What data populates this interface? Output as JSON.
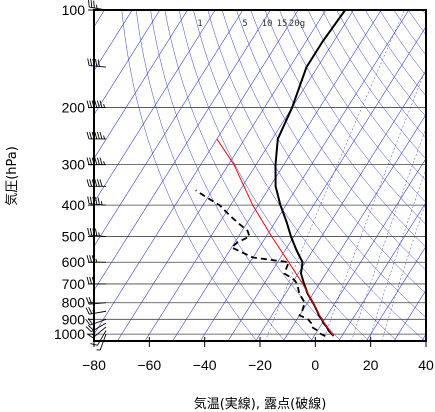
{
  "chart_data": {
    "type": "skew-t",
    "xlabel": "気温(実線), 露点(破線)",
    "ylabel": "気圧(hPa)",
    "x_ticks": [
      -80,
      -60,
      -40,
      -20,
      0,
      20,
      40
    ],
    "y_ticks": [
      100,
      200,
      300,
      400,
      500,
      600,
      700,
      800,
      900,
      1000
    ],
    "xlim": [
      -80,
      40
    ],
    "ylim": [
      1050,
      100
    ],
    "y_scale": "log",
    "grid": true,
    "mixing_ratio_labels": [
      "1",
      "5",
      "10",
      "15",
      "20g"
    ],
    "colors": {
      "temperature": "#000000",
      "dewpoint": "#000000",
      "parcel": "#ff0000",
      "guide_lines": "#3344cc",
      "wind_barbs": "#000000"
    },
    "series": [
      {
        "kind": "temperature",
        "line_style": "solid",
        "points": [
          {
            "p": 1013,
            "t": 7
          },
          {
            "p": 1000,
            "t": 6
          },
          {
            "p": 975,
            "t": 4
          },
          {
            "p": 950,
            "t": 2.5
          },
          {
            "p": 925,
            "t": 0.5
          },
          {
            "p": 900,
            "t": -1
          },
          {
            "p": 875,
            "t": -3
          },
          {
            "p": 850,
            "t": -4.5
          },
          {
            "p": 800,
            "t": -8
          },
          {
            "p": 750,
            "t": -12
          },
          {
            "p": 700,
            "t": -15.5
          },
          {
            "p": 650,
            "t": -19
          },
          {
            "p": 600,
            "t": -21
          },
          {
            "p": 550,
            "t": -26
          },
          {
            "p": 500,
            "t": -31
          },
          {
            "p": 450,
            "t": -36
          },
          {
            "p": 400,
            "t": -42
          },
          {
            "p": 350,
            "t": -48
          },
          {
            "p": 300,
            "t": -53
          },
          {
            "p": 250,
            "t": -58
          },
          {
            "p": 200,
            "t": -60
          },
          {
            "p": 150,
            "t": -64
          },
          {
            "p": 125,
            "t": -64
          },
          {
            "p": 100,
            "t": -63
          }
        ]
      },
      {
        "kind": "dewpoint",
        "line_style": "dashed",
        "points": [
          {
            "p": 1013,
            "t": 4
          },
          {
            "p": 1000,
            "t": 2
          },
          {
            "p": 975,
            "t": 0
          },
          {
            "p": 950,
            "t": -3
          },
          {
            "p": 925,
            "t": -4
          },
          {
            "p": 900,
            "t": -6
          },
          {
            "p": 875,
            "t": -10
          },
          {
            "p": 850,
            "t": -10
          },
          {
            "p": 800,
            "t": -11
          },
          {
            "p": 750,
            "t": -15
          },
          {
            "p": 700,
            "t": -18
          },
          {
            "p": 680,
            "t": -20
          },
          {
            "p": 650,
            "t": -25
          },
          {
            "p": 600,
            "t": -26
          },
          {
            "p": 580,
            "t": -40
          },
          {
            "p": 560,
            "t": -45
          },
          {
            "p": 540,
            "t": -50
          },
          {
            "p": 520,
            "t": -49
          },
          {
            "p": 500,
            "t": -46
          },
          {
            "p": 480,
            "t": -48
          },
          {
            "p": 460,
            "t": -52
          },
          {
            "p": 440,
            "t": -56
          },
          {
            "p": 420,
            "t": -60
          },
          {
            "p": 400,
            "t": -64
          },
          {
            "p": 380,
            "t": -70
          },
          {
            "p": 360,
            "t": -76
          }
        ]
      },
      {
        "kind": "parcel",
        "line_style": "solid",
        "points": [
          {
            "p": 1013,
            "t": 7
          },
          {
            "p": 900,
            "t": -1
          },
          {
            "p": 800,
            "t": -8
          },
          {
            "p": 700,
            "t": -16
          },
          {
            "p": 600,
            "t": -26
          },
          {
            "p": 500,
            "t": -38
          },
          {
            "p": 400,
            "t": -52
          },
          {
            "p": 300,
            "t": -68
          },
          {
            "p": 250,
            "t": -80
          }
        ]
      }
    ],
    "winds": [
      {
        "p": 1000,
        "speed_kt": 5,
        "dir_deg": 200
      },
      {
        "p": 975,
        "speed_kt": 10,
        "dir_deg": 210
      },
      {
        "p": 950,
        "speed_kt": 15,
        "dir_deg": 230
      },
      {
        "p": 925,
        "speed_kt": 20,
        "dir_deg": 240
      },
      {
        "p": 900,
        "speed_kt": 20,
        "dir_deg": 250
      },
      {
        "p": 850,
        "speed_kt": 25,
        "dir_deg": 260
      },
      {
        "p": 800,
        "speed_kt": 25,
        "dir_deg": 265
      },
      {
        "p": 700,
        "speed_kt": 30,
        "dir_deg": 270
      },
      {
        "p": 600,
        "speed_kt": 35,
        "dir_deg": 270
      },
      {
        "p": 500,
        "speed_kt": 45,
        "dir_deg": 275
      },
      {
        "p": 400,
        "speed_kt": 55,
        "dir_deg": 275
      },
      {
        "p": 350,
        "speed_kt": 60,
        "dir_deg": 270
      },
      {
        "p": 300,
        "speed_kt": 65,
        "dir_deg": 270
      },
      {
        "p": 250,
        "speed_kt": 70,
        "dir_deg": 270
      },
      {
        "p": 200,
        "speed_kt": 65,
        "dir_deg": 270
      },
      {
        "p": 150,
        "speed_kt": 50,
        "dir_deg": 275
      },
      {
        "p": 100,
        "speed_kt": 35,
        "dir_deg": 280
      }
    ]
  }
}
